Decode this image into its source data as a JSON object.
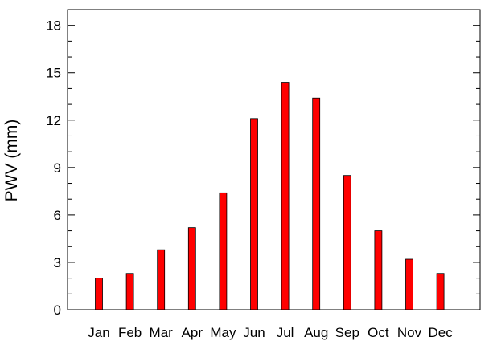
{
  "chart_data": {
    "type": "bar",
    "title": "",
    "xlabel": "",
    "ylabel": "PWV (mm)",
    "categories": [
      "Jan",
      "Feb",
      "Mar",
      "Apr",
      "May",
      "Jun",
      "Jul",
      "Aug",
      "Sep",
      "Oct",
      "Nov",
      "Dec"
    ],
    "values": [
      2.0,
      2.3,
      3.8,
      5.2,
      7.4,
      12.1,
      14.4,
      13.4,
      8.5,
      5.0,
      3.2,
      2.3
    ],
    "ylim": [
      0,
      19
    ],
    "yticks": [
      0,
      3,
      6,
      9,
      12,
      15,
      18
    ],
    "ytick_labels": [
      "0",
      "3",
      "6",
      "9",
      "12",
      "15",
      "18"
    ],
    "grid": false,
    "bar_color": "#ff0000",
    "bar_edge_color": "#000000"
  }
}
